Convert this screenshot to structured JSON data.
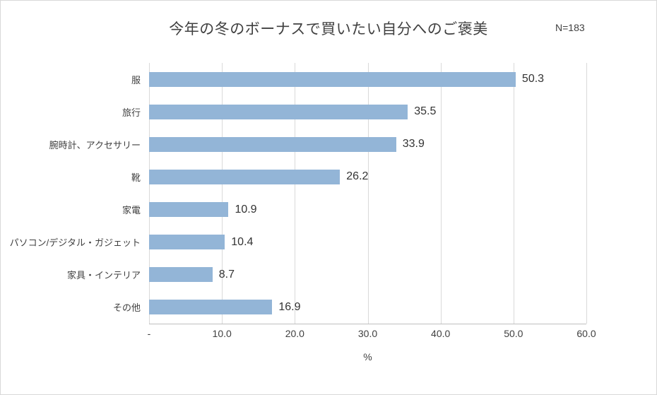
{
  "chart": {
    "title": "今年の冬のボーナスで買いたい自分へのご褒美",
    "n_label": "N=183",
    "xlabel": "%"
  },
  "chart_data": {
    "type": "bar",
    "orientation": "horizontal",
    "title": "今年の冬のボーナスで買いたい自分へのご褒美",
    "subtitle": "N=183",
    "categories": [
      "服",
      "旅行",
      "腕時計、アクセサリー",
      "靴",
      "家電",
      "パソコン/デジタル・ガジェット",
      "家具・インテリア",
      "その他"
    ],
    "values": [
      50.3,
      35.5,
      33.9,
      26.2,
      10.9,
      10.4,
      8.7,
      16.9
    ],
    "xlabel": "%",
    "ylabel": "",
    "xlim": [
      0,
      60
    ],
    "xticks": [
      0,
      10,
      20,
      30,
      40,
      50,
      60
    ],
    "xtick_labels": [
      "-",
      "10.0",
      "20.0",
      "30.0",
      "40.0",
      "50.0",
      "60.0"
    ],
    "bar_color": "#93b5d7",
    "gridline_color": "#d9d9d9",
    "grid": true,
    "legend": false
  }
}
